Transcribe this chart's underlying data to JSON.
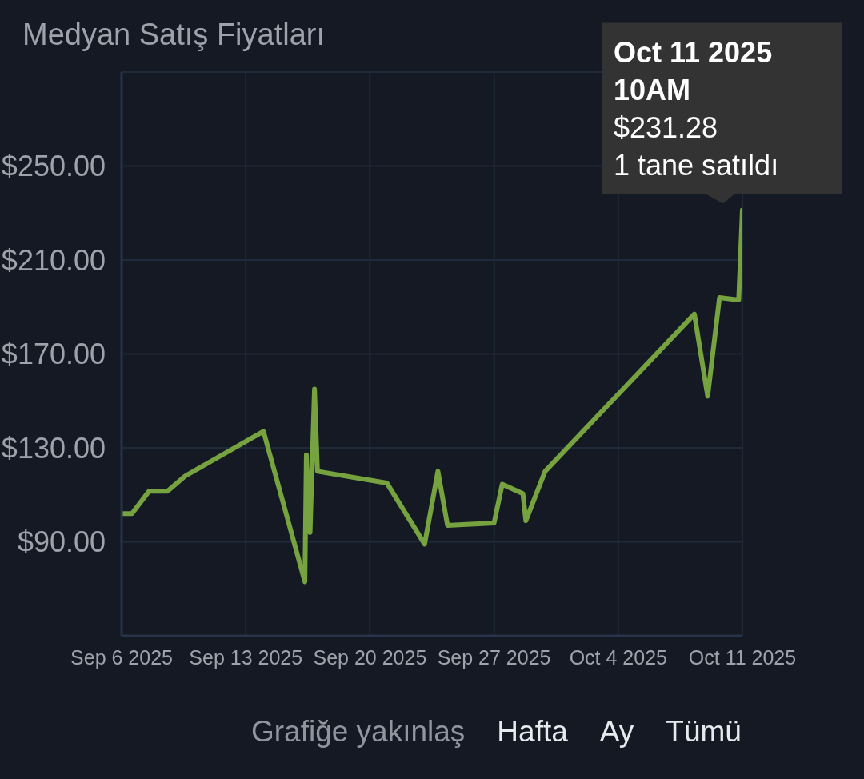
{
  "chart_data": {
    "type": "line",
    "title": "Medyan Satış Fiyatları",
    "x": [
      "2025-09-06T10:00",
      "2025-09-07T00:00",
      "2025-09-07T23:00",
      "2025-09-09T00:00",
      "2025-09-10T00:00",
      "2025-09-14T10:00",
      "2025-09-16T18:00",
      "2025-09-16T20:00",
      "2025-09-17T01:00",
      "2025-09-17T07:00",
      "2025-09-17T11:00",
      "2025-09-21T09:00",
      "2025-09-23T12:00",
      "2025-09-24T06:00",
      "2025-09-24T19:00",
      "2025-09-27T10:00",
      "2025-09-27T21:00",
      "2025-09-29T01:00",
      "2025-09-29T05:00",
      "2025-09-30T07:00",
      "2025-10-08T17:00",
      "2025-10-09T11:00",
      "2025-10-10T03:00",
      "2025-10-11T05:00",
      "2025-10-11T10:00"
    ],
    "series": [
      {
        "color": "#76a33f",
        "values": [
          102,
          102,
          111.5,
          111.5,
          118,
          137,
          73,
          127,
          94,
          155,
          120,
          115,
          89,
          120,
          97,
          98,
          114.5,
          110.5,
          99,
          120,
          187,
          152,
          194,
          193,
          231.28
        ]
      }
    ],
    "xlim": [
      "2025-09-06T10:00",
      "2025-10-11T10:00"
    ],
    "xticks": [
      {
        "value": "2025-09-06T10:00",
        "label": "Sep 6 2025"
      },
      {
        "value": "2025-09-13T10:00",
        "label": "Sep 13 2025"
      },
      {
        "value": "2025-09-20T10:00",
        "label": "Sep 20 2025"
      },
      {
        "value": "2025-09-27T10:00",
        "label": "Sep 27 2025"
      },
      {
        "value": "2025-10-04T10:00",
        "label": "Oct 4 2025"
      },
      {
        "value": "2025-10-11T10:00",
        "label": "Oct 11 2025"
      }
    ],
    "ylim": [
      50,
      290
    ],
    "yticks": [
      {
        "value": 90,
        "label": "$90.00"
      },
      {
        "value": 130,
        "label": "$130.00"
      },
      {
        "value": 170,
        "label": "$170.00"
      },
      {
        "value": 210,
        "label": "$210.00"
      },
      {
        "value": 250,
        "label": "$250.00"
      }
    ],
    "grid": true,
    "line_style": "solid",
    "annotations": [
      {
        "text": "Oct 11 2025 10AM\n$231.28\n1 tane satıldı",
        "x": "2025-10-11T10:00",
        "y": 231.28
      },
      "Grafiğe yakınlaş",
      "Hafta",
      "Ay",
      "Tümü"
    ]
  }
}
